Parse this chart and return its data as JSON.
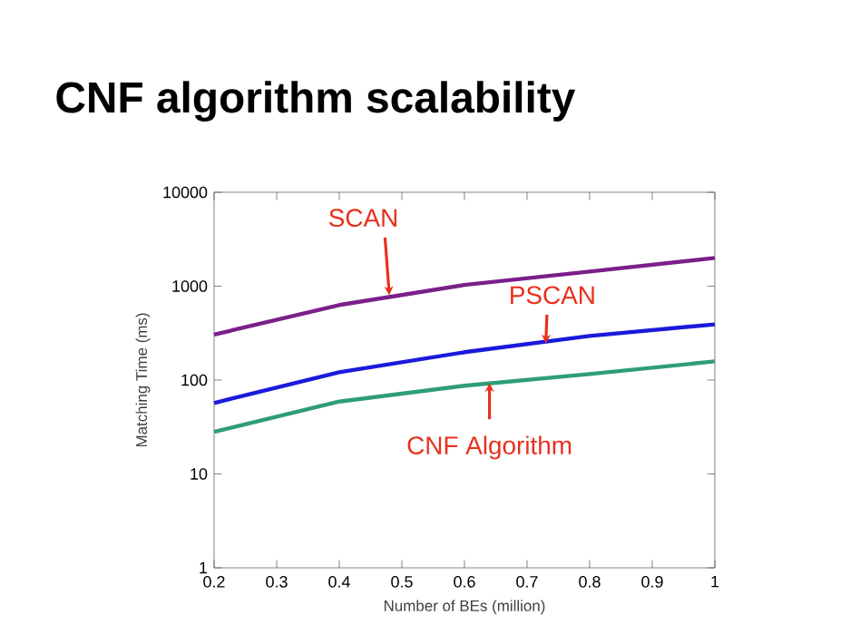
{
  "chart_data": {
    "type": "line",
    "title": "CNF algorithm scalability",
    "xlabel": "Number of BEs (million)",
    "ylabel": "Matching Time (ms)",
    "x": [
      0.2,
      0.4,
      0.6,
      0.8,
      1.0
    ],
    "series": [
      {
        "color": "#7b1f8a",
        "values": [
          305,
          630,
          1030,
          1430,
          2000
        ]
      },
      {
        "color": "#1a1adb",
        "values": [
          57,
          121,
          198,
          295,
          392
        ]
      },
      {
        "color": "#2e9e74",
        "values": [
          28,
          59,
          87,
          116,
          158
        ]
      }
    ],
    "log": "y",
    "xlim": [
      0.2,
      1
    ],
    "ylim": [
      1,
      10000
    ],
    "xticks": [
      0.2,
      0.3,
      0.4,
      0.5,
      0.6,
      0.7,
      0.8,
      0.9,
      1
    ],
    "yticks": [
      1,
      10,
      100,
      1000,
      10000
    ],
    "grid": false,
    "marker": "none",
    "line_style": "solid",
    "annotations": [
      {
        "text": "SCAN",
        "x": 0.48,
        "y": 800
      },
      {
        "text": "PSCAN",
        "x": 0.73,
        "y": 245
      },
      {
        "text": "CNF Algorithm",
        "x": 0.64,
        "y": 93
      }
    ]
  }
}
